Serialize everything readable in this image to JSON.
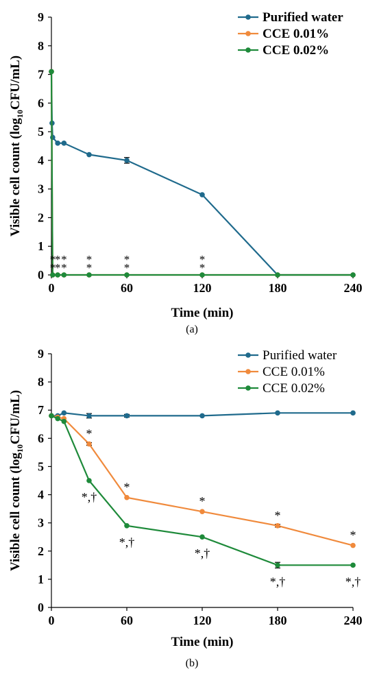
{
  "chart_data": [
    {
      "type": "line",
      "panel_label": "(a)",
      "xlabel": "Time (min)",
      "ylabel_parts": [
        "Visible cell count (log",
        "10",
        "CFU/mL)"
      ],
      "xlim": [
        0,
        240
      ],
      "ylim": [
        0,
        9
      ],
      "xticks": [
        0,
        60,
        120,
        180,
        240
      ],
      "yticks": [
        0,
        1,
        2,
        3,
        4,
        5,
        6,
        7,
        8,
        9
      ],
      "grid": false,
      "legend_position": "top-right",
      "legend_bold": true,
      "series": [
        {
          "name": "Purified water",
          "color": "#1f6a8c",
          "x": [
            0,
            0.5,
            1,
            5,
            10,
            30,
            60,
            120,
            180,
            240
          ],
          "y": [
            7.1,
            5.3,
            4.8,
            4.6,
            4.6,
            4.2,
            4.0,
            2.8,
            0,
            0
          ],
          "errors": [
            0,
            0,
            0,
            0,
            0,
            0,
            0.1,
            0,
            0,
            0
          ]
        },
        {
          "name": "CCE 0.01%",
          "color": "#f08a3c",
          "x": [
            0,
            1,
            5,
            10,
            30,
            60,
            120,
            180,
            240
          ],
          "y": [
            7.1,
            0,
            0,
            0,
            0,
            0,
            0,
            0,
            0
          ],
          "errors": [
            0,
            0,
            0,
            0,
            0,
            0,
            0,
            0,
            0
          ]
        },
        {
          "name": "CCE 0.02%",
          "color": "#1e8a3a",
          "x": [
            0,
            1,
            5,
            10,
            30,
            60,
            120,
            180,
            240
          ],
          "y": [
            7.1,
            0,
            0,
            0,
            0,
            0,
            0,
            0,
            0
          ],
          "errors": [
            0,
            0,
            0,
            0,
            0,
            0,
            0,
            0,
            0
          ]
        }
      ],
      "annotations": [
        {
          "x": 1,
          "y": 0,
          "rows": [
            "*",
            "*"
          ]
        },
        {
          "x": 5,
          "y": 0,
          "rows": [
            "*",
            "*"
          ]
        },
        {
          "x": 10,
          "y": 0,
          "rows": [
            "*",
            "*"
          ]
        },
        {
          "x": 30,
          "y": 0,
          "rows": [
            "*",
            "*"
          ]
        },
        {
          "x": 60,
          "y": 0,
          "rows": [
            "*",
            "*"
          ]
        },
        {
          "x": 120,
          "y": 0,
          "rows": [
            "*",
            "*"
          ]
        }
      ]
    },
    {
      "type": "line",
      "panel_label": "(b)",
      "xlabel": "Time (min)",
      "ylabel_parts": [
        "Visible cell count (log",
        "10",
        "CFU/mL)"
      ],
      "xlim": [
        0,
        240
      ],
      "ylim": [
        0,
        9
      ],
      "xticks": [
        0,
        60,
        120,
        180,
        240
      ],
      "yticks": [
        0,
        1,
        2,
        3,
        4,
        5,
        6,
        7,
        8,
        9
      ],
      "grid": false,
      "legend_position": "top-right",
      "legend_bold": false,
      "series": [
        {
          "name": "Purified water",
          "color": "#1f6a8c",
          "x": [
            0,
            5,
            10,
            30,
            60,
            120,
            180,
            240
          ],
          "y": [
            6.8,
            6.8,
            6.9,
            6.8,
            6.8,
            6.8,
            6.9,
            6.9
          ],
          "errors": [
            0,
            0,
            0,
            0.08,
            0.05,
            0,
            0,
            0
          ]
        },
        {
          "name": "CCE 0.01%",
          "color": "#f08a3c",
          "x": [
            0,
            5,
            10,
            30,
            60,
            120,
            180,
            240
          ],
          "y": [
            6.8,
            6.75,
            6.7,
            5.8,
            3.9,
            3.4,
            2.9,
            2.2
          ],
          "errors": [
            0,
            0,
            0,
            0.05,
            0,
            0,
            0.05,
            0
          ]
        },
        {
          "name": "CCE 0.02%",
          "color": "#1e8a3a",
          "x": [
            0,
            5,
            10,
            30,
            60,
            120,
            180,
            240
          ],
          "y": [
            6.8,
            6.7,
            6.6,
            4.5,
            2.9,
            2.5,
            1.5,
            1.5
          ],
          "errors": [
            0,
            0,
            0,
            0,
            0,
            0,
            0.1,
            0
          ]
        }
      ],
      "annotations": [
        {
          "x": 30,
          "y": 5.8,
          "text": "*",
          "pos": "above"
        },
        {
          "x": 60,
          "y": 3.9,
          "text": "*",
          "pos": "above"
        },
        {
          "x": 120,
          "y": 3.4,
          "text": "*",
          "pos": "above"
        },
        {
          "x": 180,
          "y": 2.9,
          "text": "*",
          "pos": "above"
        },
        {
          "x": 240,
          "y": 2.2,
          "text": "*",
          "pos": "above"
        },
        {
          "x": 30,
          "y": 4.5,
          "text": "*,†",
          "pos": "below"
        },
        {
          "x": 60,
          "y": 2.9,
          "text": "*,†",
          "pos": "below"
        },
        {
          "x": 120,
          "y": 2.5,
          "text": "*,†",
          "pos": "below"
        },
        {
          "x": 180,
          "y": 1.5,
          "text": "*,†",
          "pos": "below"
        },
        {
          "x": 240,
          "y": 1.5,
          "text": "*,†",
          "pos": "below"
        }
      ]
    }
  ]
}
